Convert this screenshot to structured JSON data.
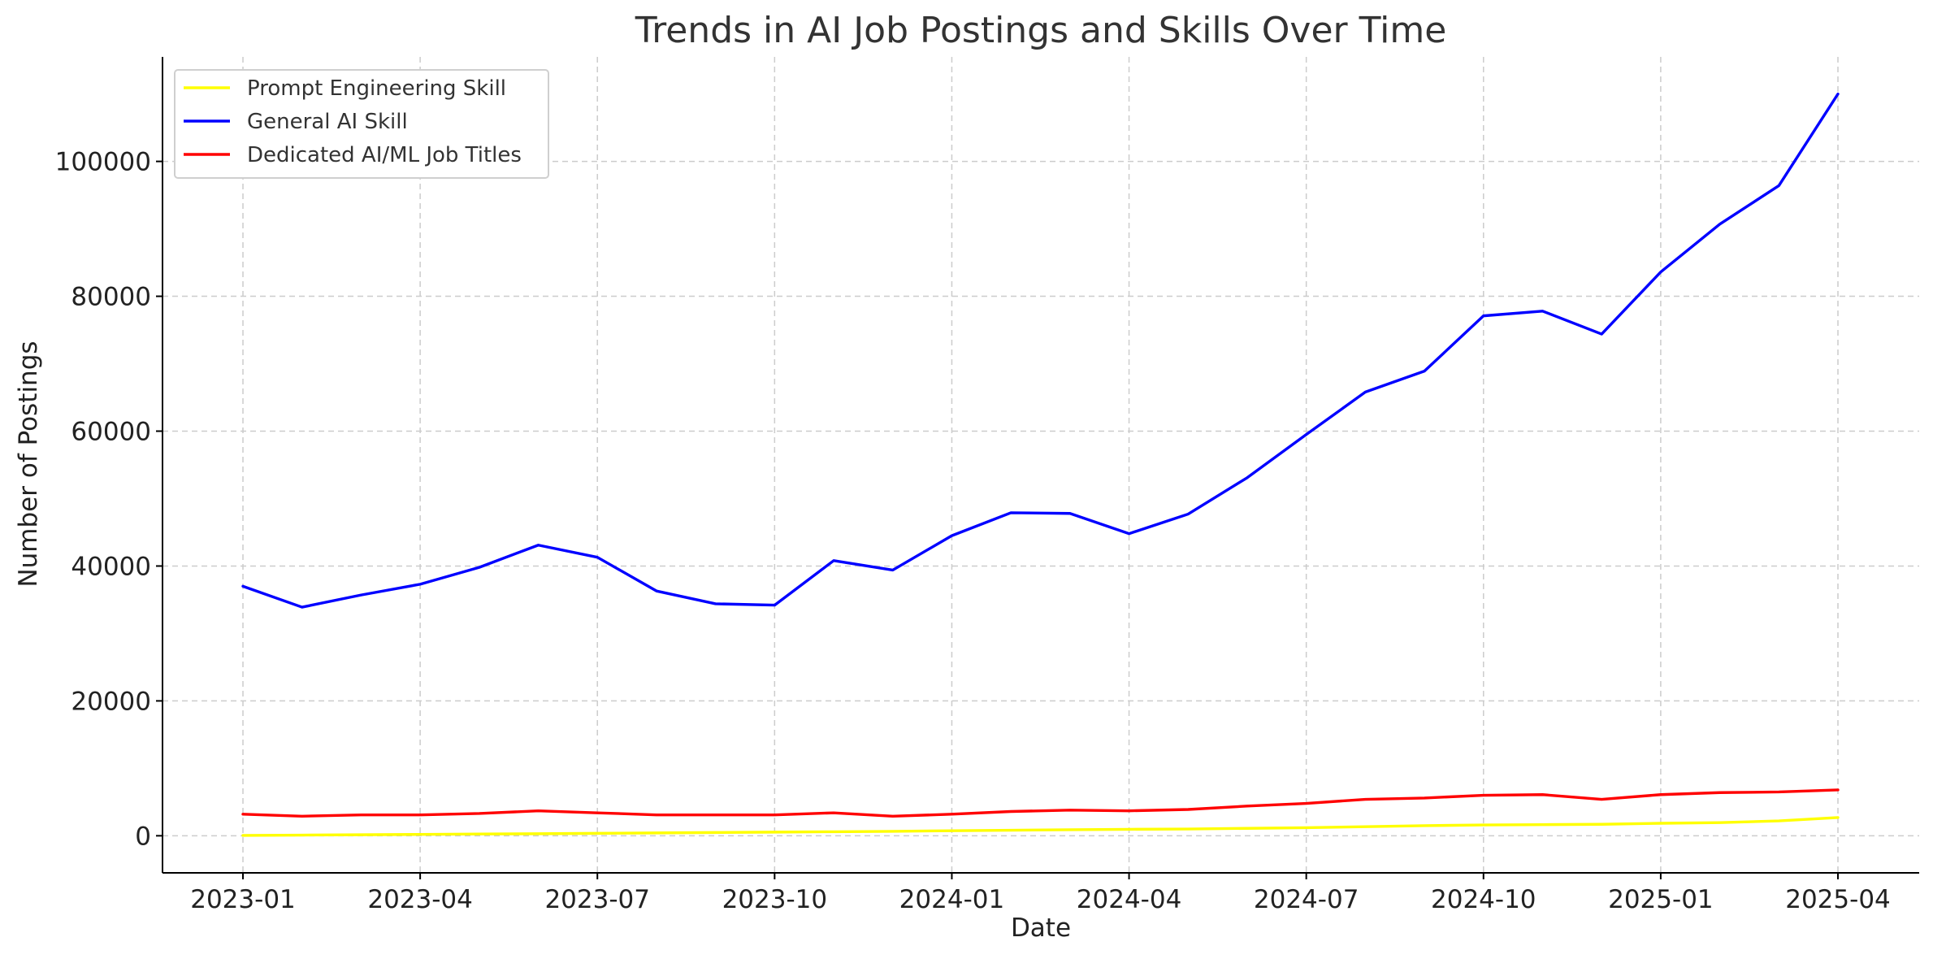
{
  "chart_data": {
    "type": "line",
    "title": "Trends in AI Job Postings and Skills Over Time",
    "xlabel": "Date",
    "ylabel": "Number of Postings",
    "x": [
      "2023-01",
      "2023-02",
      "2023-03",
      "2023-04",
      "2023-05",
      "2023-06",
      "2023-07",
      "2023-08",
      "2023-09",
      "2023-10",
      "2023-11",
      "2023-12",
      "2024-01",
      "2024-02",
      "2024-03",
      "2024-04",
      "2024-05",
      "2024-06",
      "2024-07",
      "2024-08",
      "2024-09",
      "2024-10",
      "2024-11",
      "2024-12",
      "2025-01",
      "2025-02",
      "2025-03",
      "2025-04"
    ],
    "x_ticks": [
      "2023-01",
      "2023-04",
      "2023-07",
      "2023-10",
      "2024-01",
      "2024-04",
      "2024-07",
      "2024-10",
      "2025-01",
      "2025-04"
    ],
    "y_ticks": [
      0,
      20000,
      40000,
      60000,
      80000,
      100000
    ],
    "ylim": [
      -5500,
      115500
    ],
    "grid": true,
    "legend_position": "top-left",
    "series": [
      {
        "name": "Prompt Engineering Skill",
        "color": "#ffff00",
        "values": [
          50,
          100,
          150,
          200,
          260,
          300,
          360,
          420,
          480,
          540,
          600,
          660,
          740,
          820,
          900,
          960,
          1000,
          1100,
          1200,
          1350,
          1500,
          1600,
          1650,
          1700,
          1850,
          1950,
          2200,
          2700
        ]
      },
      {
        "name": "General AI Skill",
        "color": "#0000ff",
        "values": [
          37000,
          33900,
          35700,
          37300,
          39800,
          43100,
          41300,
          36300,
          34400,
          34200,
          40800,
          39400,
          44500,
          47900,
          47800,
          44800,
          47700,
          53100,
          59500,
          65800,
          68900,
          77100,
          77800,
          74400,
          83600,
          90700,
          96400,
          110000
        ]
      },
      {
        "name": "Dedicated AI/ML Job Titles",
        "color": "#ff0000",
        "values": [
          3200,
          2900,
          3100,
          3100,
          3300,
          3700,
          3400,
          3100,
          3100,
          3100,
          3400,
          2900,
          3200,
          3600,
          3800,
          3700,
          3900,
          4400,
          4800,
          5400,
          5600,
          6000,
          6100,
          5400,
          6100,
          6400,
          6500,
          6800
        ]
      }
    ]
  }
}
